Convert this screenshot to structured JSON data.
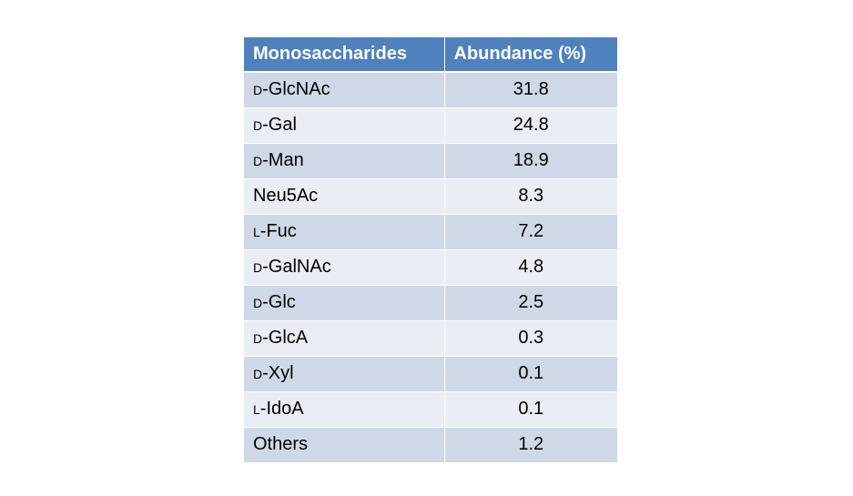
{
  "table": {
    "headers": [
      "Monosaccharides",
      "Abundance (%)"
    ],
    "rows": [
      {
        "prefix": "d",
        "name": "-GlcNAc",
        "value": "31.8"
      },
      {
        "prefix": "d",
        "name": "-Gal",
        "value": "24.8"
      },
      {
        "prefix": "d",
        "name": "-Man",
        "value": "18.9"
      },
      {
        "prefix": "",
        "name": "Neu5Ac",
        "value": "8.3"
      },
      {
        "prefix": "l",
        "name": "-Fuc",
        "value": "7.2"
      },
      {
        "prefix": "d",
        "name": "-GalNAc",
        "value": "4.8"
      },
      {
        "prefix": "d",
        "name": "-Glc",
        "value": "2.5"
      },
      {
        "prefix": "d",
        "name": "-GlcA",
        "value": "0.3"
      },
      {
        "prefix": "d",
        "name": "-Xyl",
        "value": "0.1"
      },
      {
        "prefix": "l",
        "name": "-IdoA",
        "value": "0.1"
      },
      {
        "prefix": "",
        "name": "Others",
        "value": "1.2"
      }
    ],
    "colors": {
      "header": "#4f81bd",
      "row_odd": "#d0d8e8",
      "row_even": "#e9edf4"
    }
  }
}
